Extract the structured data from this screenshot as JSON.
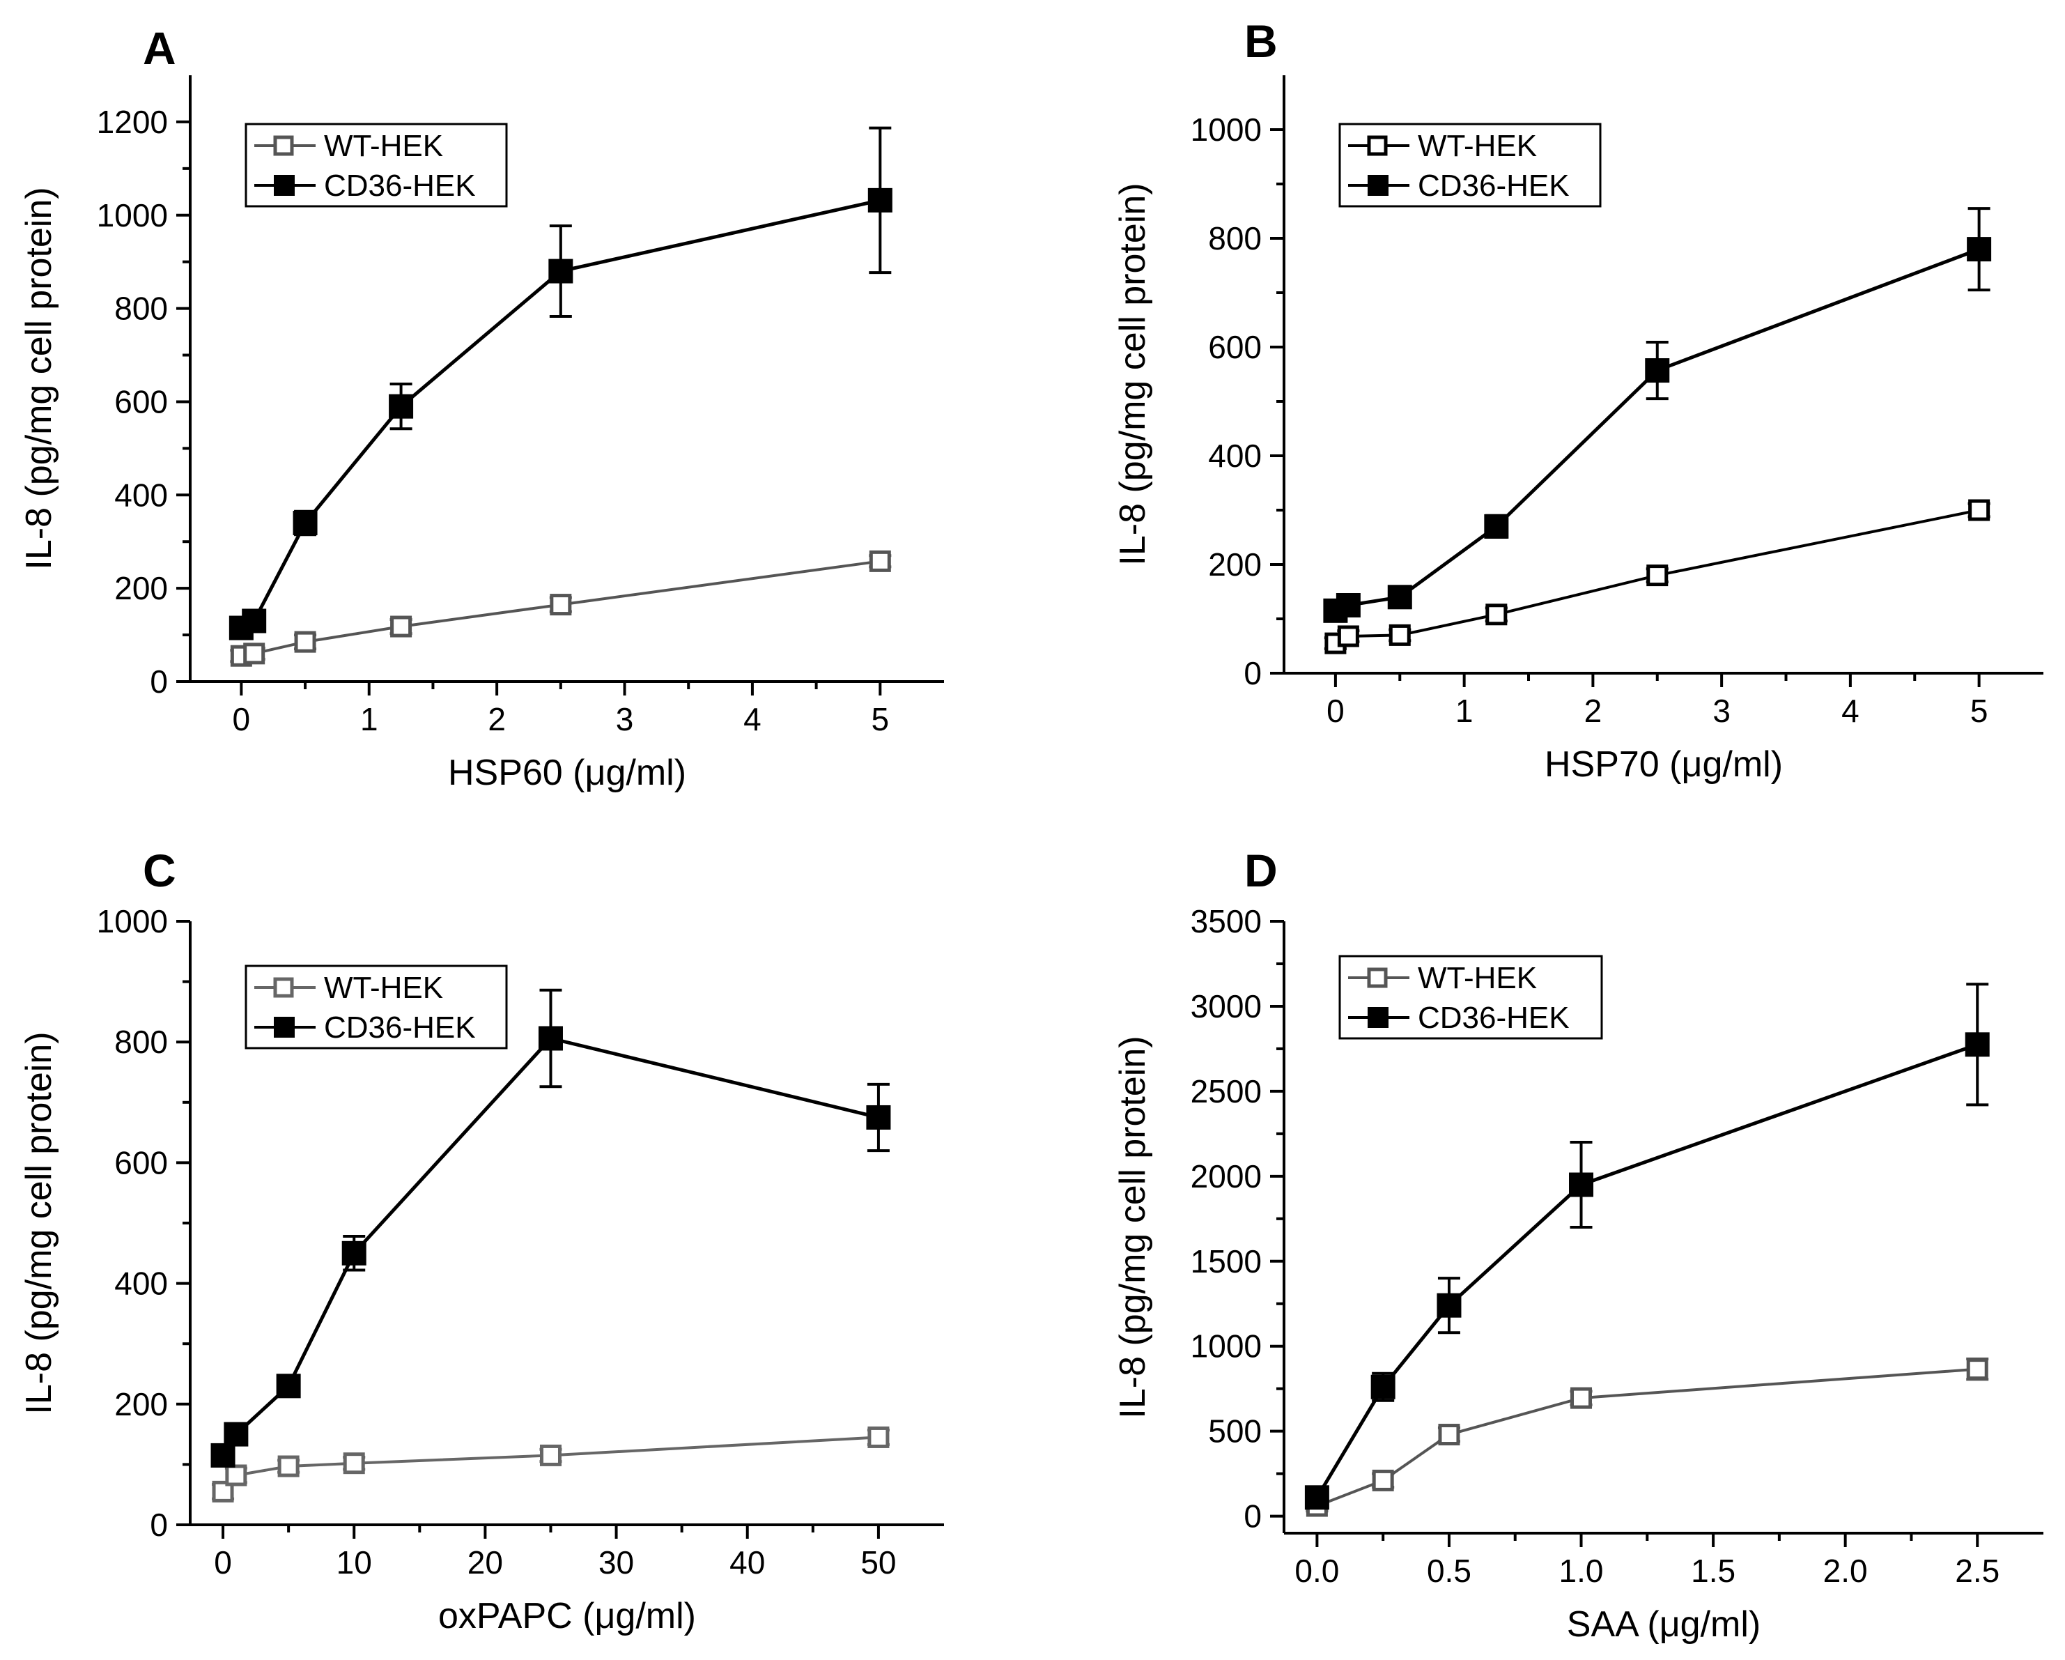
{
  "chart_data": [
    {
      "panel": "A",
      "type": "line",
      "title": "",
      "xlabel": "HSP60 (μg/ml)",
      "ylabel": "IL-8 (pg/mg cell protein)",
      "xlim": [
        -0.4,
        5.5
      ],
      "ylim": [
        0,
        1300
      ],
      "xticks": [
        0,
        1,
        2,
        3,
        4,
        5
      ],
      "yticks": [
        0,
        200,
        400,
        600,
        800,
        1000,
        1200
      ],
      "xtick_labels": [
        "0",
        "1",
        "2",
        "3",
        "4",
        "5"
      ],
      "ytick_labels": [
        "0",
        "200",
        "400",
        "600",
        "800",
        "1000",
        "1200"
      ],
      "legend": "top-left",
      "series": [
        {
          "name": "WT-HEK",
          "marker": "open-square",
          "color": "#555555",
          "x": [
            0,
            0.1,
            0.5,
            1.25,
            2.5,
            5
          ],
          "y": [
            55,
            60,
            85,
            118,
            165,
            258
          ],
          "err": [
            12,
            12,
            15,
            15,
            15,
            12
          ]
        },
        {
          "name": "CD36-HEK",
          "marker": "filled-square",
          "color": "#000000",
          "x": [
            0,
            0.1,
            0.5,
            1.25,
            2.5,
            5
          ],
          "y": [
            115,
            130,
            340,
            590,
            880,
            1032
          ],
          "err": [
            15,
            15,
            25,
            48,
            97,
            155
          ]
        }
      ]
    },
    {
      "panel": "B",
      "type": "line",
      "title": "",
      "xlabel": "HSP70 (μg/ml)",
      "ylabel": "IL-8 (pg/mg cell protein)",
      "xlim": [
        -0.4,
        5.5
      ],
      "ylim": [
        0,
        1100
      ],
      "xticks": [
        0,
        1,
        2,
        3,
        4,
        5
      ],
      "yticks": [
        0,
        200,
        400,
        600,
        800,
        1000
      ],
      "xtick_labels": [
        "0",
        "1",
        "2",
        "3",
        "4",
        "5"
      ],
      "ytick_labels": [
        "0",
        "200",
        "400",
        "600",
        "800",
        "1000"
      ],
      "legend": "top-left",
      "series": [
        {
          "name": "WT-HEK",
          "marker": "open-square",
          "color": "#000000",
          "x": [
            0,
            0.1,
            0.5,
            1.25,
            2.5,
            5
          ],
          "y": [
            55,
            68,
            70,
            108,
            180,
            300
          ],
          "err": [
            10,
            10,
            10,
            12,
            12,
            12
          ]
        },
        {
          "name": "CD36-HEK",
          "marker": "filled-square",
          "color": "#000000",
          "x": [
            0,
            0.1,
            0.5,
            1.25,
            2.5,
            5
          ],
          "y": [
            115,
            125,
            140,
            270,
            557,
            780
          ],
          "err": [
            12,
            12,
            12,
            20,
            52,
            75
          ]
        }
      ]
    },
    {
      "panel": "C",
      "type": "line",
      "title": "",
      "xlabel": "oxPAPC (μg/ml)",
      "ylabel": "IL-8 (pg/mg cell protein)",
      "xlim": [
        -2.5,
        55
      ],
      "ylim": [
        0,
        1000
      ],
      "xticks": [
        0,
        10,
        20,
        30,
        40,
        50
      ],
      "yticks": [
        0,
        200,
        400,
        600,
        800,
        1000
      ],
      "xtick_labels": [
        "0",
        "10",
        "20",
        "30",
        "40",
        "50"
      ],
      "ytick_labels": [
        "0",
        "200",
        "400",
        "600",
        "800",
        "1000"
      ],
      "legend": "top-left",
      "series": [
        {
          "name": "WT-HEK",
          "marker": "open-square",
          "color": "#666666",
          "x": [
            0,
            1,
            5,
            10,
            25,
            50
          ],
          "y": [
            55,
            82,
            97,
            102,
            115,
            145
          ],
          "err": [
            12,
            12,
            10,
            10,
            10,
            12
          ]
        },
        {
          "name": "CD36-HEK",
          "marker": "filled-square",
          "color": "#000000",
          "x": [
            0,
            1,
            5,
            10,
            25,
            50
          ],
          "y": [
            115,
            150,
            230,
            450,
            806,
            675
          ],
          "err": [
            12,
            12,
            12,
            28,
            80,
            55
          ]
        }
      ]
    },
    {
      "panel": "D",
      "type": "line",
      "title": "",
      "xlabel": "SAA (μg/ml)",
      "ylabel": "IL-8 (pg/mg cell protein)",
      "xlim": [
        -0.125,
        2.75
      ],
      "ylim": [
        -100,
        3500
      ],
      "xticks": [
        0.0,
        0.5,
        1.0,
        1.5,
        2.0,
        2.5
      ],
      "yticks": [
        0,
        500,
        1000,
        1500,
        2000,
        2500,
        3000,
        3500
      ],
      "xtick_labels": [
        "0.0",
        "0.5",
        "1.0",
        "1.5",
        "2.0",
        "2.5"
      ],
      "ytick_labels": [
        "0",
        "500",
        "1000",
        "1500",
        "2000",
        "2500",
        "3000",
        "3500"
      ],
      "legend": "top-left",
      "series": [
        {
          "name": "WT-HEK",
          "marker": "open-square",
          "color": "#555555",
          "x": [
            0,
            0.25,
            0.5,
            1.0,
            2.5
          ],
          "y": [
            60,
            210,
            480,
            695,
            865
          ],
          "err": [
            30,
            40,
            40,
            40,
            60
          ]
        },
        {
          "name": "CD36-HEK",
          "marker": "filled-square",
          "color": "#000000",
          "x": [
            0,
            0.25,
            0.5,
            1.0,
            2.5
          ],
          "y": [
            110,
            760,
            1240,
            1950,
            2775
          ],
          "err": [
            40,
            80,
            160,
            250,
            355
          ]
        }
      ]
    }
  ]
}
